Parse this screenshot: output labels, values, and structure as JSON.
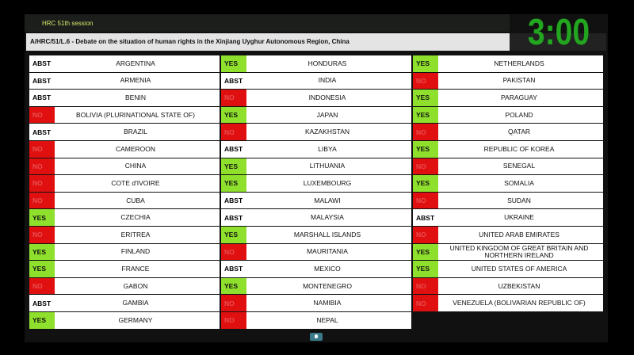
{
  "header": {
    "session": "HRC 51th session",
    "title": "A/HRC/51/L.6 -  Debate on the situation of human rights in the Xinjiang Uyghur Autonomous Region, China",
    "timer": "3:00"
  },
  "colors": {
    "yes": "#8fe02c",
    "no": "#e01010",
    "timer": "#22a51f"
  },
  "columns": [
    [
      {
        "vote": "ABST",
        "country": "ARGENTINA"
      },
      {
        "vote": "ABST",
        "country": "ARMENIA"
      },
      {
        "vote": "ABST",
        "country": "BENIN"
      },
      {
        "vote": "NO",
        "country": "BOLIVIA (PLURINATIONAL STATE OF)"
      },
      {
        "vote": "ABST",
        "country": "BRAZIL"
      },
      {
        "vote": "NO",
        "country": "CAMEROON"
      },
      {
        "vote": "NO",
        "country": "CHINA"
      },
      {
        "vote": "NO",
        "country": "COTE d'IVOIRE"
      },
      {
        "vote": "NO",
        "country": "CUBA"
      },
      {
        "vote": "YES",
        "country": "CZECHIA"
      },
      {
        "vote": "NO",
        "country": "ERITREA"
      },
      {
        "vote": "YES",
        "country": "FINLAND"
      },
      {
        "vote": "YES",
        "country": "FRANCE"
      },
      {
        "vote": "NO",
        "country": "GABON"
      },
      {
        "vote": "ABST",
        "country": "GAMBIA"
      },
      {
        "vote": "YES",
        "country": "GERMANY"
      }
    ],
    [
      {
        "vote": "YES",
        "country": "HONDURAS"
      },
      {
        "vote": "ABST",
        "country": "INDIA"
      },
      {
        "vote": "NO",
        "country": "INDONESIA"
      },
      {
        "vote": "YES",
        "country": "JAPAN"
      },
      {
        "vote": "NO",
        "country": "KAZAKHSTAN"
      },
      {
        "vote": "ABST",
        "country": "LIBYA"
      },
      {
        "vote": "YES",
        "country": "LITHUANIA"
      },
      {
        "vote": "YES",
        "country": "LUXEMBOURG"
      },
      {
        "vote": "ABST",
        "country": "MALAWI"
      },
      {
        "vote": "ABST",
        "country": "MALAYSIA"
      },
      {
        "vote": "YES",
        "country": "MARSHALL ISLANDS"
      },
      {
        "vote": "NO",
        "country": "MAURITANIA"
      },
      {
        "vote": "ABST",
        "country": "MEXICO"
      },
      {
        "vote": "YES",
        "country": "MONTENEGRO"
      },
      {
        "vote": "NO",
        "country": "NAMIBIA"
      },
      {
        "vote": "NO",
        "country": "NEPAL"
      }
    ],
    [
      {
        "vote": "YES",
        "country": "NETHERLANDS"
      },
      {
        "vote": "NO",
        "country": "PAKISTAN"
      },
      {
        "vote": "YES",
        "country": "PARAGUAY"
      },
      {
        "vote": "YES",
        "country": "POLAND"
      },
      {
        "vote": "NO",
        "country": "QATAR"
      },
      {
        "vote": "YES",
        "country": "REPUBLIC OF KOREA"
      },
      {
        "vote": "NO",
        "country": "SENEGAL"
      },
      {
        "vote": "YES",
        "country": "SOMALIA"
      },
      {
        "vote": "NO",
        "country": "SUDAN"
      },
      {
        "vote": "ABST",
        "country": "UKRAINE"
      },
      {
        "vote": "NO",
        "country": "UNITED ARAB EMIRATES"
      },
      {
        "vote": "YES",
        "country": "UNITED KINGDOM OF GREAT BRITAIN AND NORTHERN IRELAND"
      },
      {
        "vote": "YES",
        "country": "UNITED STATES OF AMERICA"
      },
      {
        "vote": "NO",
        "country": "UZBEKISTAN"
      },
      {
        "vote": "NO",
        "country": "VENEZUELA (BOLIVARIAN REPUBLIC OF)"
      }
    ]
  ]
}
